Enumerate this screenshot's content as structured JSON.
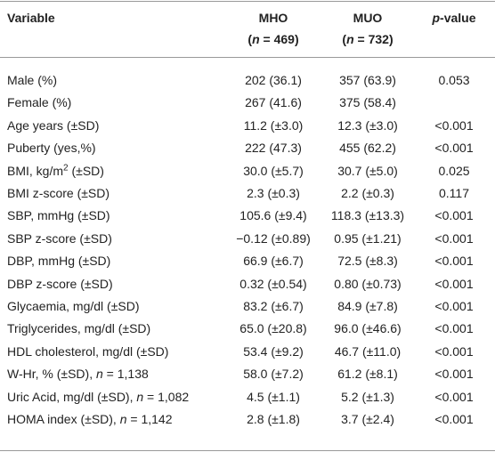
{
  "table": {
    "header": [
      [
        {
          "t": "Variable"
        }
      ],
      [
        {
          "t": "MHO"
        }
      ],
      [
        {
          "t": "MUO"
        }
      ],
      [
        {
          "i": "p"
        },
        {
          "t": "-value"
        }
      ]
    ],
    "header_sub": [
      null,
      [
        {
          "t": "("
        },
        {
          "i": "n"
        },
        {
          "t": " = 469)"
        }
      ],
      [
        {
          "t": "("
        },
        {
          "i": "n"
        },
        {
          "t": " = 732)"
        }
      ],
      null
    ],
    "rows": [
      {
        "variable": [
          {
            "t": "Male (%)"
          }
        ],
        "mho": "202 (36.1)",
        "muo": "357 (63.9)",
        "p": "0.053"
      },
      {
        "variable": [
          {
            "t": "Female (%)"
          }
        ],
        "mho": "267 (41.6)",
        "muo": "375 (58.4)"
      },
      {
        "variable": [
          {
            "t": "Age years (±SD)"
          }
        ],
        "mho": "11.2 (±3.0)",
        "muo": "12.3 (±3.0)",
        "p": "<0.001"
      },
      {
        "variable": [
          {
            "t": "Puberty (yes,%)"
          }
        ],
        "mho": "222 (47.3)",
        "muo": "455 (62.2)",
        "p": "<0.001"
      },
      {
        "variable": [
          {
            "t": "BMI, kg/m"
          },
          {
            "s": "2"
          },
          {
            "t": " (±SD)"
          }
        ],
        "mho": "30.0 (±5.7)",
        "muo": "30.7 (±5.0)",
        "p": "0.025"
      },
      {
        "variable": [
          {
            "t": "BMI z-score (±SD)"
          }
        ],
        "mho": "2.3 (±0.3)",
        "muo": "2.2 (±0.3)",
        "p": "0.117"
      },
      {
        "variable": [
          {
            "t": "SBP, mmHg (±SD)"
          }
        ],
        "mho": "105.6 (±9.4)",
        "muo": "118.3 (±13.3)",
        "p": "<0.001"
      },
      {
        "variable": [
          {
            "t": "SBP z-score (±SD)"
          }
        ],
        "mho": "−0.12 (±0.89)",
        "muo": "0.95 (±1.21)",
        "p": "<0.001"
      },
      {
        "variable": [
          {
            "t": "DBP, mmHg (±SD)"
          }
        ],
        "mho": "66.9 (±6.7)",
        "muo": "72.5 (±8.3)",
        "p": "<0.001"
      },
      {
        "variable": [
          {
            "t": "DBP z-score (±SD)"
          }
        ],
        "mho": "0.32 (±0.54)",
        "muo": "0.80 (±0.73)",
        "p": "<0.001"
      },
      {
        "variable": [
          {
            "t": "Glycaemia, mg/dl (±SD)"
          }
        ],
        "mho": "83.2 (±6.7)",
        "muo": "84.9 (±7.8)",
        "p": "<0.001"
      },
      {
        "variable": [
          {
            "t": "Triglycerides, mg/dl (±SD)"
          }
        ],
        "mho": "65.0 (±20.8)",
        "muo": "96.0 (±46.6)",
        "p": "<0.001"
      },
      {
        "variable": [
          {
            "t": "HDL cholesterol, mg/dl (±SD)"
          }
        ],
        "mho": "53.4 (±9.2)",
        "muo": "46.7 (±11.0)",
        "p": "<0.001"
      },
      {
        "variable": [
          {
            "t": "W-Hr, % (±SD), "
          },
          {
            "i": "n"
          },
          {
            "t": " = 1,138"
          }
        ],
        "mho": "58.0 (±7.2)",
        "muo": "61.2 (±8.1)",
        "p": "<0.001"
      },
      {
        "variable": [
          {
            "t": "Uric Acid, mg/dl (±SD), "
          },
          {
            "i": "n"
          },
          {
            "t": " = 1,082"
          }
        ],
        "mho": "4.5 (±1.1)",
        "muo": "5.2 (±1.3)",
        "p": "<0.001"
      },
      {
        "variable": [
          {
            "t": "HOMA index (±SD), "
          },
          {
            "i": "n"
          },
          {
            "t": " = 1,142"
          }
        ],
        "mho": "2.8 (±1.8)",
        "muo": "3.7 (±2.4)",
        "p": "<0.001"
      }
    ]
  }
}
